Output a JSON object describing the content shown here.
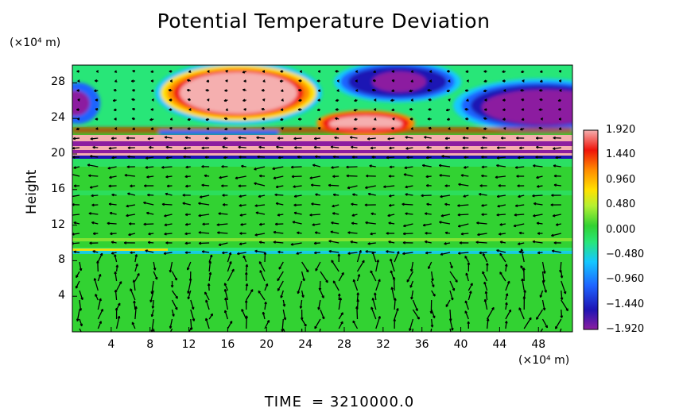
{
  "chart_data": {
    "type": "heatmap",
    "title": "Potential Temperature Deviation",
    "ylabel": "Height",
    "x_unit": "(×10⁴ m)",
    "y_unit": "(×10⁴ m)",
    "xlim": [
      0,
      51.5
    ],
    "ylim": [
      0,
      30
    ],
    "x_ticks": [
      4,
      8,
      12,
      16,
      20,
      24,
      28,
      32,
      36,
      40,
      44,
      48
    ],
    "y_ticks": [
      4,
      8,
      12,
      16,
      20,
      24,
      28
    ],
    "colorbar": {
      "min": -1.92,
      "max": 1.92,
      "tick_labels": [
        "1.920",
        "1.440",
        "0.960",
        "0.480",
        "0.000",
        "−0.480",
        "−0.960",
        "−1.440",
        "−1.920"
      ]
    },
    "overlay": "wind vectors",
    "time_label": "TIME",
    "time_value": "= 3210000.0",
    "regions": [
      {
        "name": "positive anomaly",
        "x": [
          10,
          23
        ],
        "y": [
          24.5,
          29.5
        ],
        "value": 1.92
      },
      {
        "name": "positive anomaly",
        "x": [
          25.5,
          34.5
        ],
        "y": [
          22.5,
          25
        ],
        "value": 1.92
      },
      {
        "name": "negative anomaly",
        "x": [
          28,
          36
        ],
        "y": [
          25.5,
          30
        ],
        "value": -1.92
      },
      {
        "name": "negative anomaly",
        "x": [
          38.5,
          51.5
        ],
        "y": [
          23,
          27.5
        ],
        "value": -1.92
      },
      {
        "name": "negative anomaly",
        "x": [
          0,
          3
        ],
        "y": [
          24,
          27
        ],
        "value": -1.92
      },
      {
        "name": "banded layer",
        "x": [
          0,
          51.5
        ],
        "y": [
          19.5,
          22
        ],
        "value": 1.92
      }
    ]
  },
  "colors": {
    "background_field": "#32d232",
    "colormap": [
      "#8c1ea0",
      "#1e14b4",
      "#1e64ff",
      "#14c8ff",
      "#28e678",
      "#32d232",
      "#b4f032",
      "#ffe100",
      "#ff8c00",
      "#f0140a",
      "#f5afaf"
    ]
  }
}
